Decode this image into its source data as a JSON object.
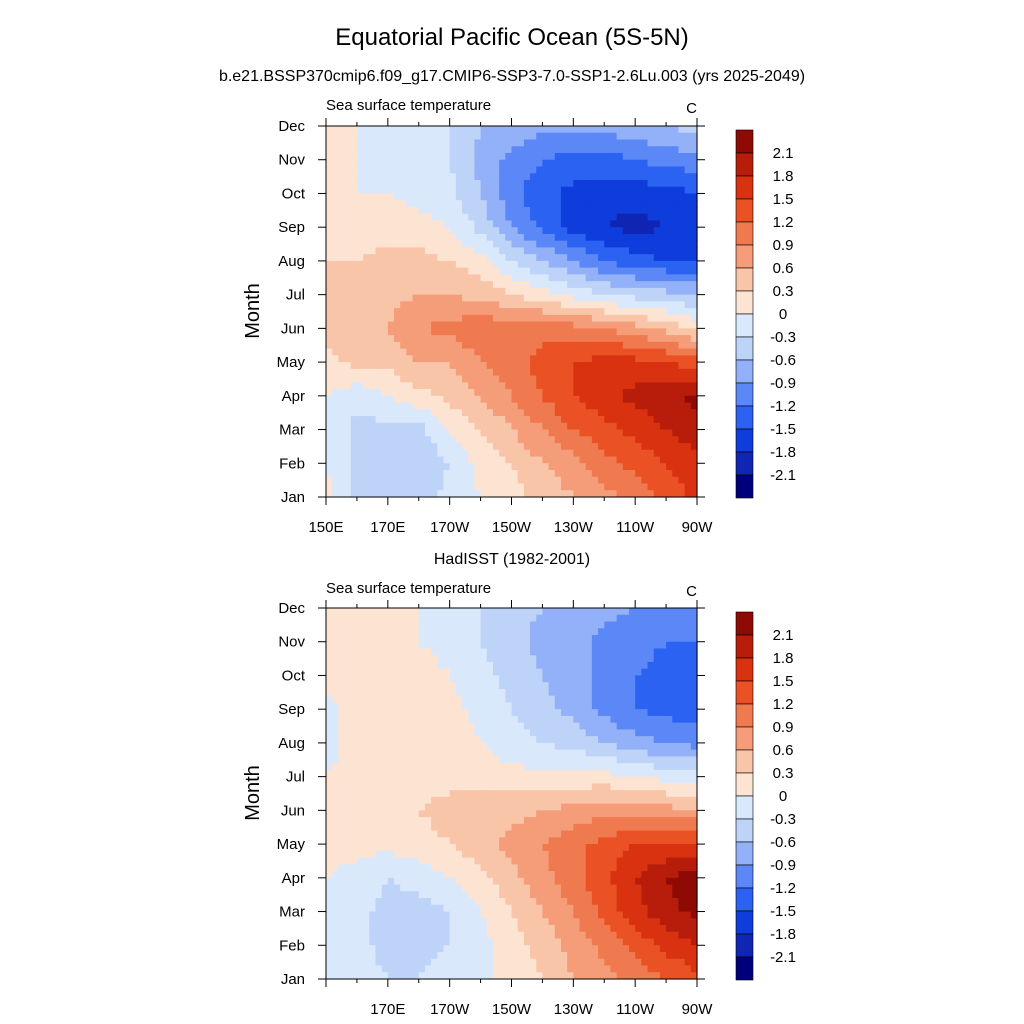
{
  "title": "Equatorial Pacific Ocean (5S-5N)",
  "subtitle": "b.e21.BSSP370cmip6.f09_g17.CMIP6-SSP3-7.0-SSP1-2.6Lu.003 (yrs 2025-2049)",
  "second_panel_title": "HadISST (1982-2001)",
  "colors": {
    "palette": [
      "#00007a",
      "#0f25b3",
      "#0f3ddc",
      "#2b62f2",
      "#5c88f7",
      "#93b1f8",
      "#bed3f8",
      "#d9e9fb",
      "#fde4d2",
      "#f9c5a9",
      "#f59c78",
      "#f07a4f",
      "#ea5225",
      "#d93210",
      "#b71d0a",
      "#8e0a04"
    ]
  },
  "chart_data": [
    {
      "type": "heatmap",
      "name": "model",
      "left_label": "Sea surface temperature",
      "right_label": "C",
      "ylabel": "Month",
      "x_ticks": [
        "150E",
        "170E",
        "170W",
        "150W",
        "130W",
        "110W",
        "90W"
      ],
      "y_ticks": [
        "Jan",
        "Feb",
        "Mar",
        "Apr",
        "May",
        "Jun",
        "Jul",
        "Aug",
        "Sep",
        "Oct",
        "Nov",
        "Dec"
      ],
      "colorbar_labels": [
        "2.1",
        "1.8",
        "1.5",
        "1.2",
        "0.9",
        "0.6",
        "0.3",
        "0",
        "-0.3",
        "-0.6",
        "-0.9",
        "-1.2",
        "-1.5",
        "-1.8",
        "-2.1"
      ],
      "levels": [
        -2.1,
        -1.8,
        -1.5,
        -1.2,
        -0.9,
        -0.6,
        -0.3,
        0,
        0.3,
        0.6,
        0.9,
        1.2,
        1.5,
        1.8,
        2.1
      ],
      "x": [
        150,
        160,
        170,
        180,
        190,
        200,
        210,
        220,
        230,
        240,
        250,
        260,
        270
      ],
      "y_months": [
        "Jan",
        "Feb",
        "Mar",
        "Apr",
        "May",
        "Jun",
        "Jul",
        "Aug",
        "Sep",
        "Oct",
        "Nov",
        "Dec"
      ],
      "z": [
        [
          0.1,
          -0.4,
          -0.5,
          -0.5,
          -0.2,
          0.0,
          0.2,
          0.4,
          0.6,
          0.8,
          1.0,
          1.3,
          1.6
        ],
        [
          0.0,
          -0.4,
          -0.5,
          -0.5,
          -0.3,
          0.1,
          0.3,
          0.6,
          0.8,
          1.1,
          1.3,
          1.5,
          1.7
        ],
        [
          0.0,
          -0.4,
          -0.4,
          -0.4,
          0.0,
          0.3,
          0.6,
          0.9,
          1.2,
          1.4,
          1.6,
          1.8,
          2.0
        ],
        [
          0.0,
          -0.2,
          0.0,
          0.2,
          0.4,
          0.6,
          0.9,
          1.2,
          1.5,
          1.7,
          1.9,
          2.0,
          2.2
        ],
        [
          0.2,
          0.4,
          0.4,
          0.6,
          0.6,
          0.9,
          1.1,
          1.3,
          1.5,
          1.6,
          1.6,
          1.5,
          1.3
        ],
        [
          0.4,
          0.5,
          0.6,
          0.9,
          1.0,
          1.1,
          1.1,
          1.1,
          1.0,
          0.9,
          0.7,
          0.5,
          0.2
        ],
        [
          0.3,
          0.4,
          0.5,
          0.6,
          0.6,
          0.5,
          0.3,
          0.1,
          -0.1,
          -0.3,
          -0.4,
          -0.5,
          -0.6
        ],
        [
          0.3,
          0.3,
          0.4,
          0.4,
          0.3,
          0.1,
          -0.3,
          -0.6,
          -0.9,
          -1.2,
          -1.4,
          -1.5,
          -1.6
        ],
        [
          0.1,
          0.0,
          0.2,
          0.1,
          0.0,
          -0.4,
          -0.9,
          -1.3,
          -1.6,
          -1.8,
          -1.9,
          -1.8,
          -1.8
        ],
        [
          0.1,
          0.0,
          0.0,
          -0.1,
          -0.2,
          -0.6,
          -1.1,
          -1.4,
          -1.6,
          -1.7,
          -1.7,
          -1.6,
          -1.5
        ],
        [
          0.1,
          0.0,
          -0.1,
          -0.1,
          -0.3,
          -0.7,
          -1.0,
          -1.2,
          -1.3,
          -1.3,
          -1.2,
          -1.1,
          -1.0
        ],
        [
          0.1,
          0.0,
          -0.1,
          -0.1,
          -0.3,
          -0.6,
          -0.7,
          -0.8,
          -0.8,
          -0.8,
          -0.7,
          -0.6,
          -0.5
        ]
      ]
    },
    {
      "type": "heatmap",
      "name": "observation",
      "left_label": "Sea surface temperature",
      "right_label": "C",
      "ylabel": "Month",
      "x_ticks": [
        "170E",
        "170W",
        "150W",
        "130W",
        "110W",
        "90W"
      ],
      "y_ticks": [
        "Jan",
        "Feb",
        "Mar",
        "Apr",
        "May",
        "Jun",
        "Jul",
        "Aug",
        "Sep",
        "Oct",
        "Nov",
        "Dec"
      ],
      "colorbar_labels": [
        "2.1",
        "1.8",
        "1.5",
        "1.2",
        "0.9",
        "0.6",
        "0.3",
        "0",
        "-0.3",
        "-0.6",
        "-0.9",
        "-1.2",
        "-1.5",
        "-1.8",
        "-2.1"
      ],
      "levels": [
        -2.1,
        -1.8,
        -1.5,
        -1.2,
        -0.9,
        -0.6,
        -0.3,
        0,
        0.3,
        0.6,
        0.9,
        1.2,
        1.5,
        1.8,
        2.1
      ],
      "x": [
        150,
        160,
        170,
        180,
        190,
        200,
        210,
        220,
        230,
        240,
        250,
        260,
        270
      ],
      "y_months": [
        "Jan",
        "Feb",
        "Mar",
        "Apr",
        "May",
        "Jun",
        "Jul",
        "Aug",
        "Sep",
        "Oct",
        "Nov",
        "Dec"
      ],
      "z": [
        [
          0.0,
          -0.2,
          -0.3,
          -0.3,
          -0.2,
          -0.1,
          0.1,
          0.3,
          0.6,
          0.8,
          1.0,
          1.2,
          1.4
        ],
        [
          0.0,
          -0.2,
          -0.4,
          -0.4,
          -0.3,
          -0.1,
          0.2,
          0.4,
          0.7,
          1.0,
          1.3,
          1.6,
          1.8
        ],
        [
          0.0,
          -0.2,
          -0.4,
          -0.4,
          -0.3,
          0.0,
          0.3,
          0.6,
          0.9,
          1.3,
          1.7,
          2.0,
          2.2
        ],
        [
          0.0,
          -0.1,
          -0.3,
          -0.2,
          0.0,
          0.2,
          0.5,
          0.8,
          1.1,
          1.4,
          1.8,
          2.1,
          2.3
        ],
        [
          0.1,
          0.1,
          0.1,
          0.2,
          0.3,
          0.5,
          0.7,
          0.9,
          1.1,
          1.3,
          1.5,
          1.5,
          1.6
        ],
        [
          0.1,
          0.2,
          0.2,
          0.3,
          0.4,
          0.4,
          0.5,
          0.6,
          0.7,
          0.8,
          0.8,
          0.7,
          0.6
        ],
        [
          0.0,
          0.1,
          0.2,
          0.2,
          0.2,
          0.2,
          0.1,
          0.1,
          0.1,
          0.1,
          0.0,
          -0.1,
          -0.2
        ],
        [
          -0.1,
          0.1,
          0.2,
          0.2,
          0.2,
          0.0,
          -0.2,
          -0.3,
          -0.4,
          -0.6,
          -0.8,
          -0.9,
          -1.0
        ],
        [
          -0.1,
          0.1,
          0.3,
          0.2,
          0.1,
          -0.1,
          -0.3,
          -0.5,
          -0.7,
          -1.0,
          -1.2,
          -1.3,
          -1.4
        ],
        [
          0.1,
          0.1,
          0.1,
          0.1,
          0.0,
          -0.2,
          -0.4,
          -0.6,
          -0.8,
          -1.0,
          -1.2,
          -1.3,
          -1.4
        ],
        [
          0.1,
          0.1,
          0.1,
          0.0,
          -0.1,
          -0.3,
          -0.5,
          -0.7,
          -0.8,
          -1.0,
          -1.1,
          -1.2,
          -1.2
        ],
        [
          0.1,
          0.1,
          0.1,
          0.0,
          -0.1,
          -0.3,
          -0.5,
          -0.6,
          -0.7,
          -0.8,
          -0.9,
          -0.9,
          -1.0
        ]
      ]
    }
  ]
}
